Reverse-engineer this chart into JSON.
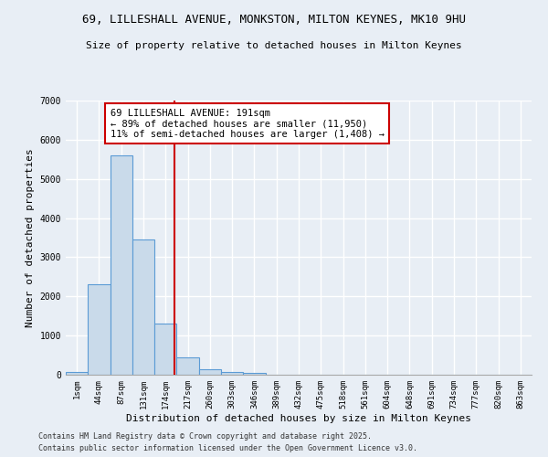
{
  "title1": "69, LILLESHALL AVENUE, MONKSTON, MILTON KEYNES, MK10 9HU",
  "title2": "Size of property relative to detached houses in Milton Keynes",
  "xlabel": "Distribution of detached houses by size in Milton Keynes",
  "ylabel": "Number of detached properties",
  "bar_labels": [
    "1sqm",
    "44sqm",
    "87sqm",
    "131sqm",
    "174sqm",
    "217sqm",
    "260sqm",
    "303sqm",
    "346sqm",
    "389sqm",
    "432sqm",
    "475sqm",
    "518sqm",
    "561sqm",
    "604sqm",
    "648sqm",
    "691sqm",
    "734sqm",
    "777sqm",
    "820sqm",
    "863sqm"
  ],
  "bar_values": [
    80,
    2300,
    5600,
    3450,
    1300,
    450,
    150,
    70,
    50,
    10,
    5,
    3,
    2,
    1,
    1,
    0,
    0,
    0,
    0,
    0,
    0
  ],
  "bar_color": "#c9daea",
  "bar_edge_color": "#5b9bd5",
  "background_color": "#e8eef5",
  "grid_color": "#ffffff",
  "red_line_idx": 4.4,
  "annotation_text": "69 LILLESHALL AVENUE: 191sqm\n← 89% of detached houses are smaller (11,950)\n11% of semi-detached houses are larger (1,408) →",
  "annotation_box_color": "#ffffff",
  "annotation_box_edge": "#cc0000",
  "red_line_color": "#cc0000",
  "ylim_max": 7000,
  "footnote1": "Contains HM Land Registry data © Crown copyright and database right 2025.",
  "footnote2": "Contains public sector information licensed under the Open Government Licence v3.0."
}
